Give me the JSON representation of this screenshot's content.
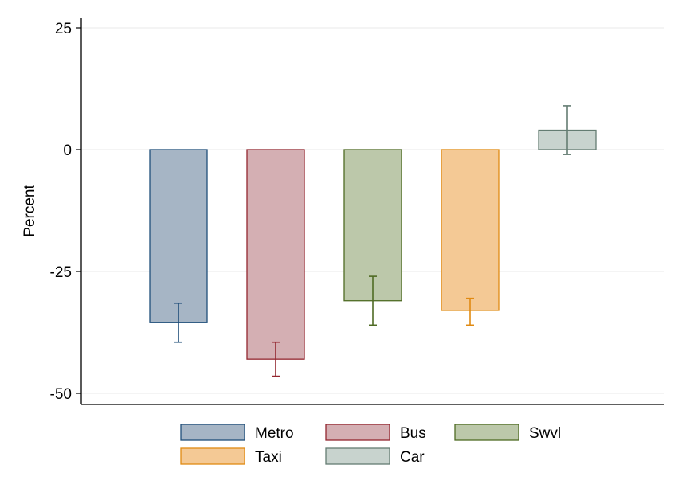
{
  "chart_data": {
    "type": "bar",
    "ylabel": "Percent",
    "ylim": [
      -52,
      27
    ],
    "yticks": [
      25,
      0,
      -25,
      -50
    ],
    "grid": true,
    "legend_position": "bottom",
    "series": [
      {
        "name": "Metro",
        "value": -35.5,
        "ci": [
          -39.5,
          -31.5
        ],
        "fill": "#a6b5c5",
        "stroke": "#1f4e79"
      },
      {
        "name": "Bus",
        "value": -43.0,
        "ci": [
          -46.5,
          -39.5
        ],
        "fill": "#d4afb3",
        "stroke": "#93262f"
      },
      {
        "name": "Swvl",
        "value": -31.0,
        "ci": [
          -36.0,
          -26.0
        ],
        "fill": "#bcc8aa",
        "stroke": "#4f6b24"
      },
      {
        "name": "Taxi",
        "value": -33.0,
        "ci": [
          -36.0,
          -30.5
        ],
        "fill": "#f4c995",
        "stroke": "#e08a12"
      },
      {
        "name": "Car",
        "value": 4.0,
        "ci": [
          -1.0,
          9.0
        ],
        "fill": "#c8d3ce",
        "stroke": "#647c72"
      }
    ]
  }
}
